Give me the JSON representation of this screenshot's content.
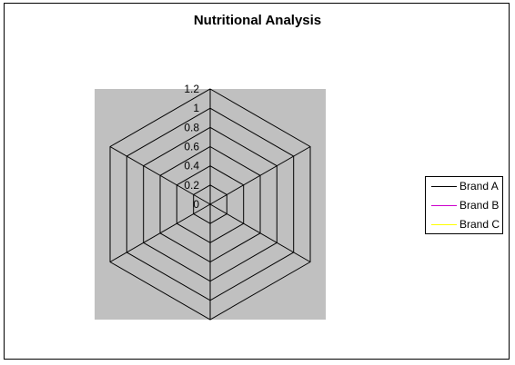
{
  "chart_data": {
    "type": "radar",
    "title": "Nutritional Analysis",
    "categories": [
      "",
      "",
      "",
      "",
      "",
      ""
    ],
    "series": [
      {
        "name": "Brand A",
        "color": "#000000",
        "values": [
          0,
          0,
          0,
          0,
          0,
          0
        ]
      },
      {
        "name": "Brand B",
        "color": "#cc00cc",
        "values": [
          0,
          0,
          0,
          0,
          0,
          0
        ]
      },
      {
        "name": "Brand C",
        "color": "#ffff00",
        "values": [
          0,
          0,
          0,
          0,
          0,
          0
        ]
      }
    ],
    "rlim": [
      0,
      1.2
    ],
    "rticks": [
      0,
      0.2,
      0.4,
      0.6,
      0.8,
      1,
      1.2
    ],
    "rtick_labels": [
      "0",
      "0.2",
      "0.4",
      "0.6",
      "0.8",
      "1",
      "1.2"
    ],
    "plot_background": "#c0c0c0",
    "grid": true,
    "legend": "right"
  }
}
